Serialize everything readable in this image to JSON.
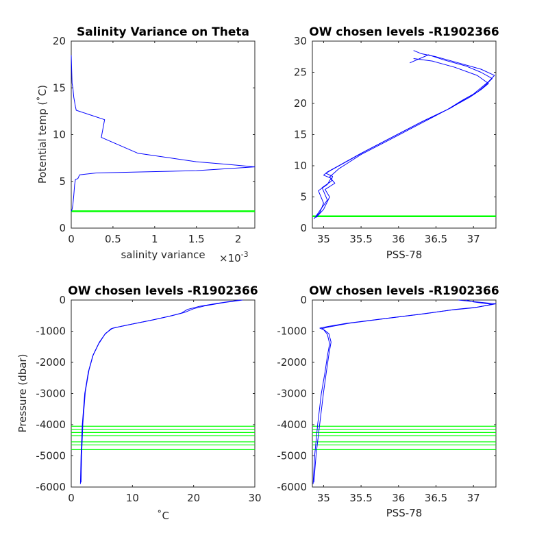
{
  "chart_data": [
    {
      "type": "line",
      "title": "Salinity Variance on Theta",
      "xlabel": "salinity variance",
      "x_exponent_label": "×10",
      "x_exponent_value": "-3",
      "ylabel": "Potential temp (˚C)",
      "xlim": [
        0,
        2.2
      ],
      "ylim": [
        0,
        20
      ],
      "xticks": [
        0,
        0.5,
        1,
        1.5,
        2
      ],
      "xtick_labels": [
        "0",
        "0.5",
        "1",
        "1.5",
        "2"
      ],
      "yticks": [
        0,
        5,
        10,
        15,
        20
      ],
      "ytick_labels": [
        "0",
        "5",
        "10",
        "15",
        "20"
      ],
      "series": [
        {
          "color": "#0000ff",
          "x": [
            0,
            0.01,
            0.02,
            0.03,
            0.05,
            0.06,
            0.4,
            0.36,
            0.8,
            1.5,
            1.9,
            2.2,
            1.5,
            0.3,
            0.1,
            0.08,
            0.05,
            0.04,
            0.03,
            0.02,
            0.01,
            0
          ],
          "y": [
            18.5,
            15.5,
            15.0,
            14.0,
            13.0,
            12.6,
            11.6,
            9.7,
            8.0,
            7.1,
            6.8,
            6.55,
            6.15,
            5.9,
            5.7,
            5.3,
            5.2,
            4.6,
            3.5,
            2.5,
            2.0,
            1.8
          ]
        }
      ],
      "hlines": [
        {
          "color": "#00ff00",
          "y": [
            1.8
          ]
        }
      ]
    },
    {
      "type": "line",
      "title": "OW chosen levels -R1902366",
      "xlabel": "PSS-78",
      "ylabel": "",
      "xlim": [
        34.85,
        37.3
      ],
      "ylim": [
        0,
        30
      ],
      "xticks": [
        35,
        35.5,
        36,
        36.5,
        37
      ],
      "xtick_labels": [
        "35",
        "35.5",
        "36",
        "36.5",
        "37"
      ],
      "yticks": [
        0,
        5,
        10,
        15,
        20,
        25,
        30
      ],
      "ytick_labels": [
        "0",
        "5",
        "10",
        "15",
        "20",
        "25",
        "30"
      ],
      "series": [
        {
          "color": "#0000ff",
          "x": [
            34.87,
            34.95,
            35.0,
            34.93,
            35.05,
            35.1,
            35.0,
            35.05,
            35.2,
            35.5,
            35.9,
            36.3,
            36.65,
            36.85,
            37.0,
            37.1,
            37.2,
            37.28,
            37.1,
            36.8,
            36.5,
            36.3,
            36.2
          ],
          "y": [
            1.5,
            2.5,
            4.0,
            6.0,
            7.0,
            8.0,
            8.5,
            9.0,
            10.0,
            12.0,
            14.5,
            17.0,
            19.0,
            20.5,
            21.5,
            22.5,
            23.5,
            24.5,
            25.5,
            26.5,
            27.5,
            28.0,
            28.5
          ]
        },
        {
          "color": "#0000ff",
          "x": [
            34.88,
            34.95,
            35.05,
            34.98,
            35.1,
            35.12,
            35.03,
            35.1,
            35.25,
            35.55,
            35.95,
            36.35,
            36.7,
            36.9,
            37.05,
            37.15,
            37.25,
            37.1,
            36.9,
            36.6,
            36.4,
            36.15
          ],
          "y": [
            1.6,
            2.8,
            4.5,
            6.5,
            7.5,
            8.3,
            8.8,
            9.3,
            10.3,
            12.3,
            14.8,
            17.3,
            19.3,
            20.8,
            21.8,
            22.8,
            24.0,
            25.0,
            26.0,
            27.0,
            27.8,
            26.5
          ]
        },
        {
          "color": "#0000ff",
          "x": [
            34.9,
            35.0,
            35.08,
            35.02,
            35.15,
            35.08,
            35.2,
            35.5,
            35.9,
            36.3,
            36.68,
            36.95,
            37.1,
            37.2,
            37.05,
            36.75,
            36.45,
            36.2
          ],
          "y": [
            1.7,
            3.0,
            5.0,
            6.2,
            7.2,
            8.2,
            9.5,
            11.8,
            14.3,
            16.8,
            19.2,
            21.0,
            22.2,
            23.2,
            24.5,
            25.8,
            26.8,
            27.2
          ]
        }
      ],
      "hlines": [
        {
          "color": "#00ff00",
          "y": [
            1.9
          ]
        }
      ]
    },
    {
      "type": "line",
      "title": "OW chosen levels -R1902366",
      "xlabel": "˚C",
      "ylabel": "Pressure (dbar)",
      "xlim": [
        0,
        30
      ],
      "ylim": [
        -6000,
        0
      ],
      "xticks": [
        0,
        10,
        20,
        30
      ],
      "xtick_labels": [
        "0",
        "10",
        "20",
        "30"
      ],
      "yticks": [
        -6000,
        -5000,
        -4000,
        -3000,
        -2000,
        -1000,
        0
      ],
      "ytick_labels": [
        "-6000",
        "-5000",
        "-4000",
        "-3000",
        "-2000",
        "-1000",
        "0"
      ],
      "series": [
        {
          "color": "#0000ff",
          "x": [
            1.5,
            1.6,
            1.8,
            2.2,
            2.8,
            3.5,
            4.5,
            5.5,
            6.5,
            8,
            10,
            13,
            16,
            18,
            19,
            21,
            24,
            27.5
          ],
          "y": [
            -5900,
            -5000,
            -4000,
            -3000,
            -2300,
            -1800,
            -1400,
            -1100,
            -920,
            -850,
            -770,
            -650,
            -520,
            -420,
            -300,
            -200,
            -100,
            0
          ]
        },
        {
          "color": "#0000ff",
          "x": [
            1.6,
            1.7,
            1.9,
            2.3,
            2.9,
            3.6,
            4.6,
            5.6,
            6.8,
            8.5,
            10.5,
            13.5,
            16.5,
            18.5,
            20,
            22,
            25,
            28
          ],
          "y": [
            -5850,
            -4950,
            -3950,
            -2950,
            -2250,
            -1750,
            -1350,
            -1070,
            -900,
            -830,
            -750,
            -630,
            -500,
            -400,
            -280,
            -180,
            -80,
            0
          ]
        }
      ],
      "hlines": [
        {
          "color": "#00ff00",
          "y": [
            -4050,
            -4150,
            -4250,
            -4350,
            -4550,
            -4650,
            -4800
          ]
        }
      ]
    },
    {
      "type": "line",
      "title": "OW chosen levels -R1902366",
      "xlabel": "PSS-78",
      "ylabel": "",
      "xlim": [
        34.85,
        37.3
      ],
      "ylim": [
        -6000,
        0
      ],
      "xticks": [
        35,
        35.5,
        36,
        36.5,
        37
      ],
      "xtick_labels": [
        "35",
        "35.5",
        "36",
        "36.5",
        "37"
      ],
      "yticks": [
        -6000,
        -5000,
        -4000,
        -3000,
        -2000,
        -1000,
        0
      ],
      "ytick_labels": [
        "-6000",
        "-5000",
        "-4000",
        "-3000",
        "-2000",
        "-1000",
        "0"
      ],
      "series": [
        {
          "color": "#0000ff",
          "x": [
            34.86,
            34.88,
            34.92,
            34.97,
            35.02,
            35.05,
            35.08,
            35.05,
            35.0,
            34.95,
            35.05,
            35.3,
            35.8,
            36.3,
            36.7,
            37.0,
            37.25,
            37.0,
            36.9
          ],
          "y": [
            -5900,
            -5000,
            -4000,
            -3000,
            -2300,
            -1800,
            -1400,
            -1100,
            -950,
            -900,
            -850,
            -750,
            -600,
            -450,
            -320,
            -250,
            -140,
            -60,
            0
          ]
        },
        {
          "color": "#0000ff",
          "x": [
            34.87,
            34.9,
            34.95,
            35.0,
            35.04,
            35.07,
            35.1,
            35.07,
            35.02,
            34.97,
            35.08,
            35.35,
            35.85,
            36.35,
            36.75,
            37.05,
            37.3,
            36.95,
            36.8
          ],
          "y": [
            -5850,
            -4950,
            -3950,
            -2950,
            -2250,
            -1750,
            -1350,
            -1080,
            -980,
            -920,
            -860,
            -740,
            -590,
            -440,
            -300,
            -230,
            -120,
            -40,
            0
          ]
        }
      ],
      "hlines": [
        {
          "color": "#00ff00",
          "y": [
            -4050,
            -4150,
            -4250,
            -4350,
            -4550,
            -4650,
            -4800
          ]
        }
      ]
    }
  ]
}
